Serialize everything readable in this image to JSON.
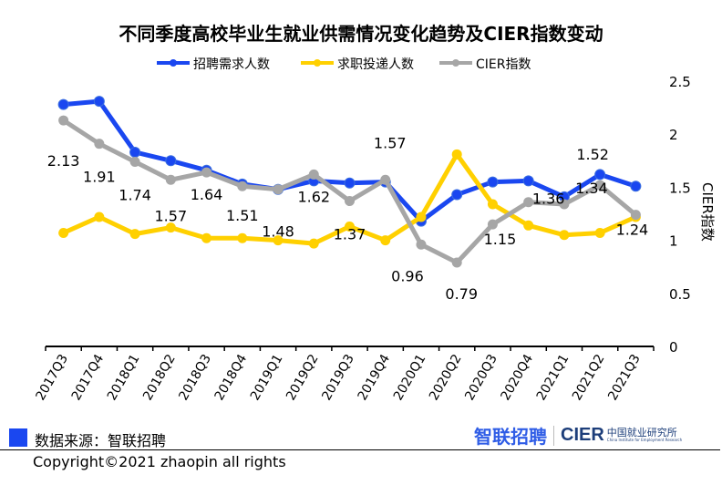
{
  "chart_data": {
    "type": "line",
    "title": "不同季度高校毕业生就业供需情况变化趋势及CIER指数变动",
    "categories": [
      "2017Q3",
      "2017Q4",
      "2018Q1",
      "2018Q2",
      "2018Q3",
      "2018Q4",
      "2019Q1",
      "2019Q2",
      "2019Q3",
      "2019Q4",
      "2020Q1",
      "2020Q2",
      "2020Q3",
      "2020Q4",
      "2021Q1",
      "2021Q2",
      "2021Q3"
    ],
    "series": [
      {
        "name": "招聘需求人数",
        "color": "#1a47f0",
        "values": [
          2.28,
          2.31,
          1.83,
          1.75,
          1.66,
          1.53,
          1.48,
          1.56,
          1.54,
          1.55,
          1.18,
          1.43,
          1.55,
          1.56,
          1.41,
          1.62,
          1.51
        ]
      },
      {
        "name": "求职投递人数",
        "color": "#ffd000",
        "values": [
          1.07,
          1.22,
          1.06,
          1.12,
          1.02,
          1.02,
          1.0,
          0.97,
          1.13,
          1.0,
          1.22,
          1.81,
          1.34,
          1.14,
          1.05,
          1.07,
          1.22
        ]
      },
      {
        "name": "CIER指数",
        "color": "#a6a6a6",
        "values": [
          2.13,
          1.91,
          1.74,
          1.57,
          1.64,
          1.51,
          1.48,
          1.62,
          1.37,
          1.57,
          0.96,
          0.79,
          1.15,
          1.36,
          1.34,
          1.52,
          1.24
        ],
        "data_labels": [
          "2.13",
          "1.91",
          "1.74",
          "1.57",
          "1.64",
          "1.51",
          "1.48",
          "1.62",
          "1.37",
          "1.57",
          "0.96",
          "0.79",
          "1.15",
          "1.36",
          "1.34",
          "1.52",
          "1.24"
        ]
      }
    ],
    "y2label": "CIER指数",
    "y2lim": [
      0,
      2.5
    ],
    "y2ticks": [
      "0",
      "0.5",
      "1",
      "1.5",
      "2",
      "2.5"
    ],
    "grid": false,
    "legend": "top"
  },
  "footer": {
    "source": "数据来源：智联招聘",
    "copyright": "Copyright©2021 zhaopin all rights",
    "logo_zhaopin": "智联招聘",
    "logo_cier": "CIER",
    "logo_cier_cn": "中国就业研究所",
    "logo_cier_en": "China Institute for Employment Research"
  }
}
